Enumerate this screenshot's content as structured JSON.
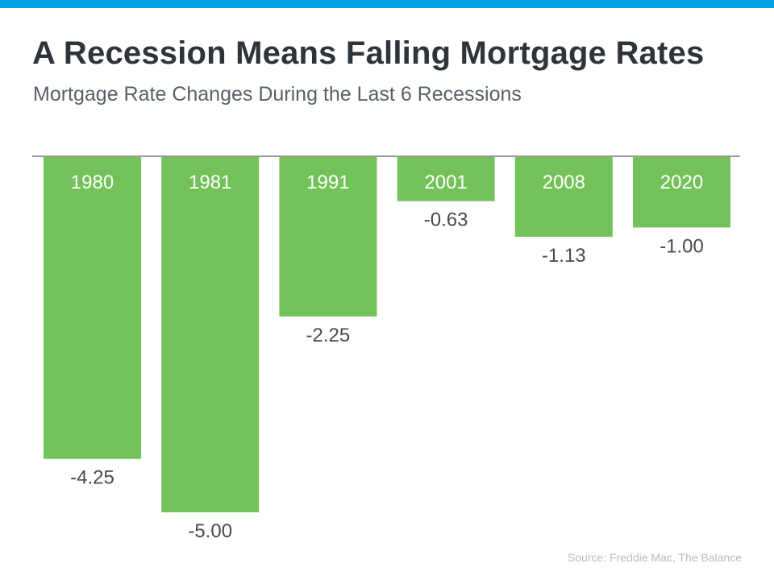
{
  "colors": {
    "accent": "#00a3e0",
    "bar": "#74c25a",
    "title": "#2e343a",
    "subtitle": "#59616a",
    "value_label": "#444b52",
    "axis_line": "#333333",
    "source": "#b8bcc0"
  },
  "title": "A Recession Means Falling Mortgage Rates",
  "subtitle": "Mortgage Rate Changes During the Last 6 Recessions",
  "source": "Source: Freddie Mac, The Balance",
  "chart_data": {
    "type": "bar",
    "categories": [
      "1980",
      "1981",
      "1991",
      "2001",
      "2008",
      "2020"
    ],
    "values": [
      -4.25,
      -5.0,
      -2.25,
      -0.63,
      -1.13,
      -1.0
    ],
    "value_labels": [
      "-4.25",
      "-5.00",
      "-2.25",
      "-0.63",
      "-1.13",
      "-1.00"
    ],
    "title": "A Recession Means Falling Mortgage Rates",
    "xlabel": "",
    "ylabel": "",
    "ylim": [
      -5,
      0
    ],
    "grid": false,
    "legend": "none"
  }
}
